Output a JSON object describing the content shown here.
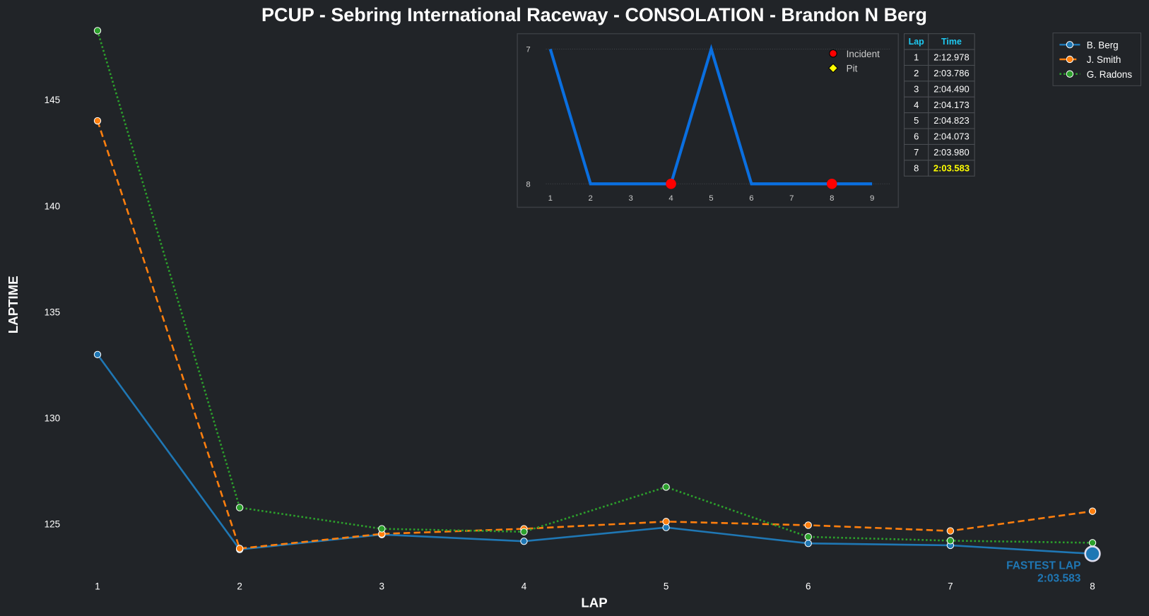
{
  "chart_data": {
    "type": "line",
    "title": "PCUP - Sebring International Raceway - CONSOLATION - Brandon N Berg",
    "xlabel": "LAP",
    "ylabel": "LAPTIME",
    "x": [
      1,
      2,
      3,
      4,
      5,
      6,
      7,
      8
    ],
    "x_ticks": [
      "1",
      "2",
      "3",
      "4",
      "5",
      "6",
      "7",
      "8"
    ],
    "y_ticks": [
      "125",
      "130",
      "135",
      "140",
      "145"
    ],
    "ylim": [
      122.5,
      148.3
    ],
    "grid": false,
    "legend_placement": "top-right",
    "series": [
      {
        "name": "B. Berg",
        "color": "#1f77b4",
        "style": "solid",
        "values": [
          132.978,
          123.786,
          124.49,
          124.173,
          124.823,
          124.073,
          123.98,
          123.583
        ]
      },
      {
        "name": "J. Smith",
        "color": "#ff7f0e",
        "style": "dashed",
        "values": [
          144.0,
          123.83,
          124.52,
          124.76,
          125.1,
          124.93,
          124.66,
          125.59
        ]
      },
      {
        "name": "G. Radons",
        "color": "#2ca02c",
        "style": "dotted",
        "values": [
          148.25,
          125.76,
          124.76,
          124.62,
          126.73,
          124.38,
          124.2,
          124.1
        ]
      }
    ],
    "annotation": {
      "label": "FASTEST LAP",
      "value": "2:03.583",
      "lap": 8,
      "laptime": 123.583
    },
    "inset": {
      "type": "line",
      "x": [
        1,
        2,
        3,
        4,
        5,
        6,
        7,
        8,
        9
      ],
      "values": [
        7,
        8,
        8,
        8,
        7,
        8,
        8,
        8,
        8
      ],
      "y_ticks": [
        "7",
        "8"
      ],
      "x_ticks": [
        "1",
        "2",
        "3",
        "4",
        "5",
        "6",
        "7",
        "8",
        "9"
      ],
      "incidents": [
        4,
        8
      ],
      "pits": [],
      "legend": [
        "Incident",
        "Pit"
      ]
    },
    "table": {
      "headers": [
        "Lap",
        "Time"
      ],
      "rows": [
        [
          "1",
          "2:12.978"
        ],
        [
          "2",
          "2:03.786"
        ],
        [
          "3",
          "2:04.490"
        ],
        [
          "4",
          "2:04.173"
        ],
        [
          "5",
          "2:04.823"
        ],
        [
          "6",
          "2:04.073"
        ],
        [
          "7",
          "2:03.980"
        ],
        [
          "8",
          "2:03.583"
        ]
      ],
      "highlight_row": 8
    }
  }
}
